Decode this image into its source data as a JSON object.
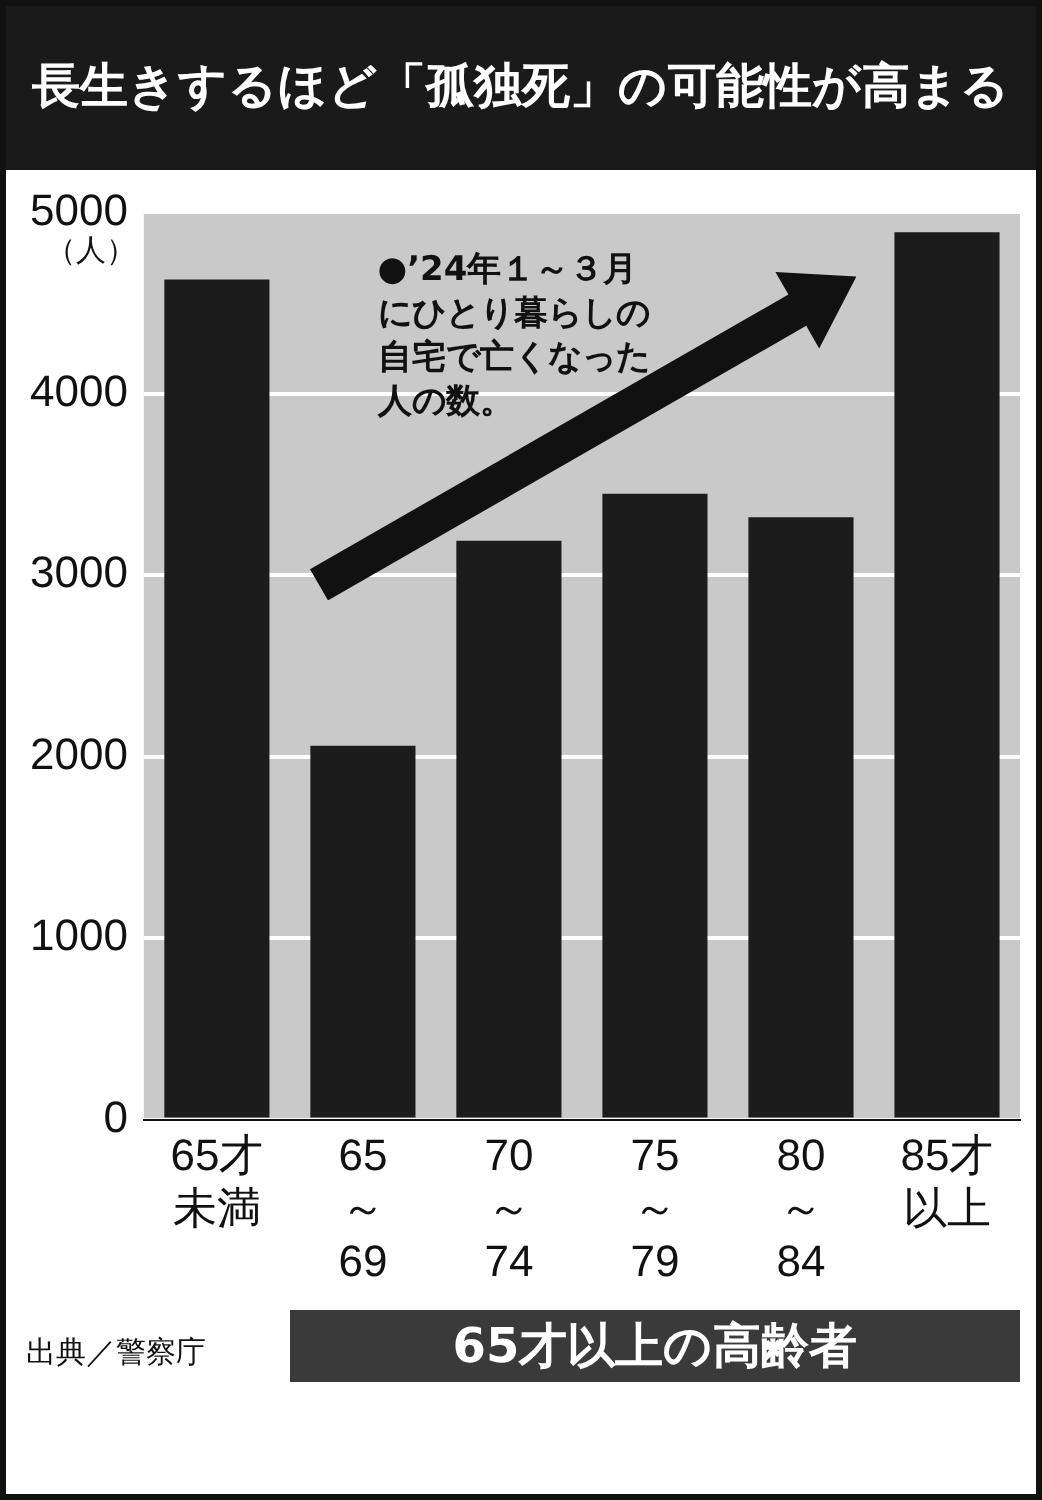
{
  "chart_data": {
    "type": "bar",
    "title": "長生きするほど「孤独死」の可能性が高まる",
    "ylabel": "（人）",
    "categories": [
      "65才未満",
      "65\n～\n69",
      "70\n～\n74",
      "75\n～\n79",
      "80\n～\n84",
      "85才以上"
    ],
    "values": [
      4630,
      2060,
      3190,
      3450,
      3320,
      4890
    ],
    "color": "#1c1c1c",
    "ylim": [
      0,
      5000
    ],
    "yticks": [
      0,
      1000,
      2000,
      3000,
      4000,
      5000
    ],
    "grid": "y",
    "legend": false,
    "annotations": [
      "●’24年１～３月にひとり暮らしの自宅で亡くなった人の数。",
      "65才以上の高齢者",
      "出典／警察庁"
    ]
  }
}
